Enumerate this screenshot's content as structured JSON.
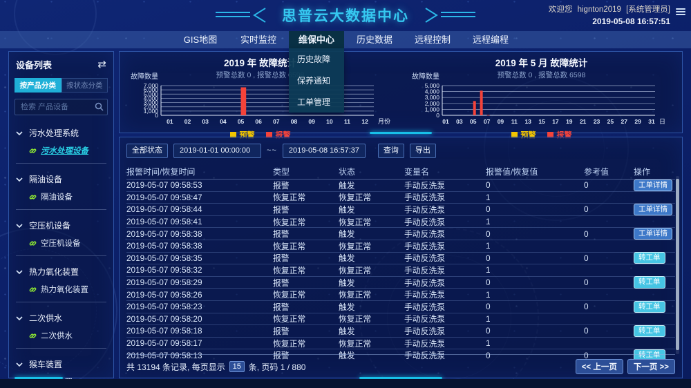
{
  "colors": {
    "accent_cyan": "#35c8f0",
    "warning_yellow": "#f2c500",
    "alarm_red": "#f4433a",
    "detail_button_blue": "#3d78c8",
    "transfer_button_cyan": "#46c5e4",
    "selected_item_cyan": "#2ad4e8",
    "link_icon_green": "#8ae234"
  },
  "header": {
    "title": "思普云大数据中心",
    "welcome_prefix": "欢迎您",
    "username": "hignton2019",
    "role": "[系统管理员]",
    "datetime": "2019-05-08 16:57:51"
  },
  "nav": {
    "tabs": [
      {
        "id": "gis-map",
        "label": "GIS地图",
        "active": false
      },
      {
        "id": "realtime-monitor",
        "label": "实时监控",
        "active": false
      },
      {
        "id": "maintenance-center",
        "label": "维保中心",
        "active": true
      },
      {
        "id": "history-data",
        "label": "历史数据",
        "active": false
      },
      {
        "id": "remote-control",
        "label": "远程控制",
        "active": false
      },
      {
        "id": "remote-programming",
        "label": "远程编程",
        "active": false
      }
    ],
    "dropdown_items": [
      {
        "id": "history-fault",
        "label": "历史故障"
      },
      {
        "id": "maintenance-notice",
        "label": "保养通知"
      },
      {
        "id": "workorder-management",
        "label": "工单管理"
      }
    ]
  },
  "sidebar": {
    "title": "设备列表",
    "tabs": [
      {
        "id": "by-product",
        "label": "按产品分类",
        "active": true
      },
      {
        "id": "by-status",
        "label": "按状态分类",
        "active": false
      }
    ],
    "search_placeholder": "检索 产品设备",
    "groups": [
      {
        "id": "sewage-system",
        "label": "污水处理系统",
        "children": [
          {
            "label": "污水处理设备",
            "selected": true
          }
        ]
      },
      {
        "id": "oil-separator",
        "label": "隔油设备",
        "children": [
          {
            "label": "隔油设备",
            "selected": false
          }
        ]
      },
      {
        "id": "air-compressor",
        "label": "空压机设备",
        "children": [
          {
            "label": "空压机设备",
            "selected": false
          }
        ]
      },
      {
        "id": "thermal-oxidizer",
        "label": "热力氧化装置",
        "children": [
          {
            "label": "热力氧化装置",
            "selected": false
          }
        ]
      },
      {
        "id": "secondary-water",
        "label": "二次供水",
        "children": [
          {
            "label": "二次供水",
            "selected": false
          }
        ]
      },
      {
        "id": "monkey-car",
        "label": "猴车装置",
        "children": [
          {
            "label": "猴车装置",
            "selected": false
          }
        ]
      }
    ]
  },
  "chart_data": [
    {
      "type": "bar",
      "title": "2019 年 故障统计",
      "subtitle": "预警总数 0 , 报警总数 6598",
      "ylabel": "故障数量",
      "xlabel": "月份",
      "categories": [
        "01",
        "02",
        "03",
        "04",
        "05",
        "06",
        "07",
        "08",
        "09",
        "10",
        "11",
        "12"
      ],
      "tick_every": 1,
      "ylim": [
        0,
        7000
      ],
      "ytick_step": 1000,
      "grid": true,
      "legend_position": "bottom",
      "series": [
        {
          "name": "预警",
          "color": "#f2c500",
          "values": [
            0,
            0,
            0,
            0,
            0,
            0,
            0,
            0,
            0,
            0,
            0,
            0
          ]
        },
        {
          "name": "报警",
          "color": "#f4433a",
          "values": [
            0,
            0,
            0,
            0,
            6598,
            0,
            0,
            0,
            0,
            0,
            0,
            0
          ]
        }
      ]
    },
    {
      "type": "bar",
      "title": "2019 年 5 月 故障统计",
      "subtitle": "预警总数 0 , 报警总数 6598",
      "ylabel": "故障数量",
      "xlabel": "日",
      "categories": [
        "01",
        "02",
        "03",
        "04",
        "05",
        "06",
        "07",
        "08",
        "09",
        "10",
        "11",
        "12",
        "13",
        "14",
        "15",
        "16",
        "17",
        "18",
        "19",
        "20",
        "21",
        "22",
        "23",
        "24",
        "25",
        "26",
        "27",
        "28",
        "29",
        "30",
        "31"
      ],
      "tick_every": 2,
      "ylim": [
        0,
        5000
      ],
      "ytick_step": 1000,
      "grid": true,
      "legend_position": "bottom",
      "series": [
        {
          "name": "预警",
          "color": "#f2c500",
          "values": [
            0,
            0,
            0,
            0,
            0,
            0,
            0,
            0,
            0,
            0,
            0,
            0,
            0,
            0,
            0,
            0,
            0,
            0,
            0,
            0,
            0,
            0,
            0,
            0,
            0,
            0,
            0,
            0,
            0,
            0,
            0
          ]
        },
        {
          "name": "报警",
          "color": "#f4433a",
          "values": [
            0,
            0,
            0,
            0,
            2400,
            4150,
            48,
            0,
            0,
            0,
            0,
            0,
            0,
            0,
            0,
            0,
            0,
            0,
            0,
            0,
            0,
            0,
            0,
            0,
            0,
            0,
            0,
            0,
            0,
            0,
            0
          ]
        }
      ]
    }
  ],
  "filters": {
    "status_label": "全部状态",
    "date_from": "2019-01-01 00:00:00",
    "range_separator": "~~",
    "date_to": "2019-05-08 16:57:37",
    "query_label": "查询",
    "export_label": "导出"
  },
  "table": {
    "columns": [
      "报警时间/恢复时间",
      "类型",
      "状态",
      "变量名",
      "报警值/恢复值",
      "参考值",
      "操作"
    ],
    "rows": [
      {
        "time": "2019-05-07 09:58:53",
        "type": "报警",
        "status": "触发",
        "variable": "手动反洗泵",
        "value": "0",
        "ref": "0",
        "action": "工单详情",
        "action_type": "detail"
      },
      {
        "time": "2019-05-07 09:58:47",
        "type": "恢复正常",
        "status": "恢复正常",
        "variable": "手动反洗泵",
        "value": "1",
        "ref": "",
        "action": "",
        "action_type": ""
      },
      {
        "time": "2019-05-07 09:58:44",
        "type": "报警",
        "status": "触发",
        "variable": "手动反洗泵",
        "value": "0",
        "ref": "0",
        "action": "工单详情",
        "action_type": "detail"
      },
      {
        "time": "2019-05-07 09:58:41",
        "type": "恢复正常",
        "status": "恢复正常",
        "variable": "手动反洗泵",
        "value": "1",
        "ref": "",
        "action": "",
        "action_type": ""
      },
      {
        "time": "2019-05-07 09:58:38",
        "type": "报警",
        "status": "触发",
        "variable": "手动反洗泵",
        "value": "0",
        "ref": "0",
        "action": "工单详情",
        "action_type": "detail"
      },
      {
        "time": "2019-05-07 09:58:38",
        "type": "恢复正常",
        "status": "恢复正常",
        "variable": "手动反洗泵",
        "value": "1",
        "ref": "",
        "action": "",
        "action_type": ""
      },
      {
        "time": "2019-05-07 09:58:35",
        "type": "报警",
        "status": "触发",
        "variable": "手动反洗泵",
        "value": "0",
        "ref": "0",
        "action": "转工单",
        "action_type": "transfer"
      },
      {
        "time": "2019-05-07 09:58:32",
        "type": "恢复正常",
        "status": "恢复正常",
        "variable": "手动反洗泵",
        "value": "1",
        "ref": "",
        "action": "",
        "action_type": ""
      },
      {
        "time": "2019-05-07 09:58:29",
        "type": "报警",
        "status": "触发",
        "variable": "手动反洗泵",
        "value": "0",
        "ref": "0",
        "action": "转工单",
        "action_type": "transfer"
      },
      {
        "time": "2019-05-07 09:58:26",
        "type": "恢复正常",
        "status": "恢复正常",
        "variable": "手动反洗泵",
        "value": "1",
        "ref": "",
        "action": "",
        "action_type": ""
      },
      {
        "time": "2019-05-07 09:58:23",
        "type": "报警",
        "status": "触发",
        "variable": "手动反洗泵",
        "value": "0",
        "ref": "0",
        "action": "转工单",
        "action_type": "transfer"
      },
      {
        "time": "2019-05-07 09:58:20",
        "type": "恢复正常",
        "status": "恢复正常",
        "variable": "手动反洗泵",
        "value": "1",
        "ref": "",
        "action": "",
        "action_type": ""
      },
      {
        "time": "2019-05-07 09:58:18",
        "type": "报警",
        "status": "触发",
        "variable": "手动反洗泵",
        "value": "0",
        "ref": "0",
        "action": "转工单",
        "action_type": "transfer"
      },
      {
        "time": "2019-05-07 09:58:17",
        "type": "恢复正常",
        "status": "恢复正常",
        "variable": "手动反洗泵",
        "value": "1",
        "ref": "",
        "action": "",
        "action_type": ""
      },
      {
        "time": "2019-05-07 09:58:13",
        "type": "报警",
        "status": "触发",
        "variable": "手动反洗泵",
        "value": "0",
        "ref": "0",
        "action": "转工单",
        "action_type": "transfer"
      }
    ]
  },
  "pagination": {
    "summary_prefix": "共 13194 条记录, 每页显示",
    "page_size": "15",
    "summary_suffix": "条, 页码 1 / 880",
    "prev_label": "<< 上一页",
    "next_label": "下一页 >>"
  }
}
